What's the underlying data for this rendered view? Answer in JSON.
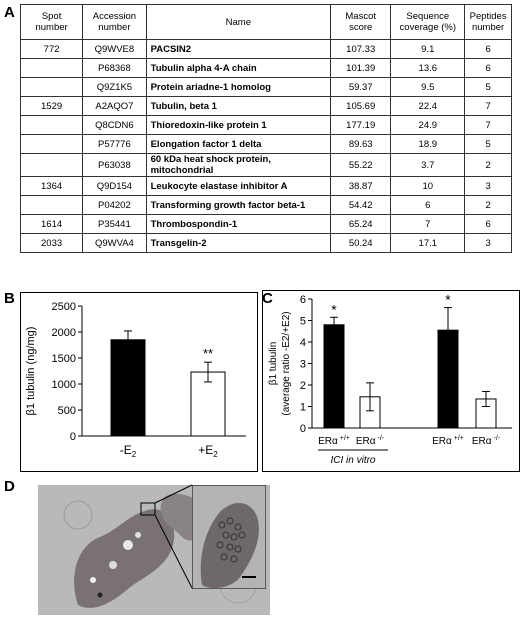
{
  "panels": {
    "A": "A",
    "B": "B",
    "C": "C",
    "D": "D"
  },
  "table": {
    "headers": [
      "Spot number",
      "Accession number",
      "Name",
      "Mascot score",
      "Sequence coverage (%)",
      "Peptides number"
    ],
    "rows": [
      [
        "772",
        "Q9WVE8",
        "PACSIN2",
        "107.33",
        "9.1",
        "6"
      ],
      [
        "",
        "P68368",
        "Tubulin alpha 4-A chain",
        "101.39",
        "13.6",
        "6"
      ],
      [
        "",
        "Q9Z1K5",
        "Protein ariadne-1 homolog",
        "59.37",
        "9.5",
        "5"
      ],
      [
        "1529",
        "A2AQO7",
        "Tubulin, beta 1",
        "105.69",
        "22.4",
        "7"
      ],
      [
        "",
        "Q8CDN6",
        "Thioredoxin-like protein 1",
        "177.19",
        "24.9",
        "7"
      ],
      [
        "",
        "P57776",
        "Elongation factor 1 delta",
        "89.63",
        "18.9",
        "5"
      ],
      [
        "",
        "P63038",
        "60 kDa heat shock protein, mitochondrial",
        "55.22",
        "3.7",
        "2"
      ],
      [
        "1364",
        "Q9D154",
        "Leukocyte elastase inhibitor A",
        "38.87",
        "10",
        "3"
      ],
      [
        "",
        "P04202",
        "Transforming growth factor beta-1",
        "54.42",
        "6",
        "2"
      ],
      [
        "1614",
        "P35441",
        "Thrombospondin-1",
        "65.24",
        "7",
        "6"
      ],
      [
        "2033",
        "Q9WVA4",
        "Transgelin-2",
        "50.24",
        "17.1",
        "3"
      ]
    ]
  },
  "chart_data": [
    {
      "type": "bar",
      "categories": [
        "-E2",
        "+E2"
      ],
      "values": [
        1850,
        1230
      ],
      "errors": [
        170,
        190
      ],
      "ylabel": "β1 tubulin (ng/mg)",
      "ylim": [
        0,
        2500
      ],
      "yticks": [
        "0",
        "500",
        "1000",
        "1500",
        "2000",
        "2500"
      ],
      "fills": [
        "#000000",
        "#ffffff"
      ],
      "annotations": [
        "",
        "**"
      ]
    },
    {
      "type": "bar",
      "categories": [
        "ERα +/+",
        "ERα -/-",
        "ERα +/+",
        "ERα -/-"
      ],
      "values": [
        4.8,
        1.45,
        4.55,
        1.35
      ],
      "errors": [
        0.35,
        0.65,
        1.05,
        0.35
      ],
      "ylabel_line1": "β1 tubulin",
      "ylabel_line2": "(average ratio -E2/+E2)",
      "ylim": [
        0,
        6
      ],
      "yticks": [
        "0",
        "1",
        "2",
        "3",
        "4",
        "5",
        "6"
      ],
      "fills": [
        "#000000",
        "#ffffff",
        "#000000",
        "#ffffff"
      ],
      "annotations": [
        "*",
        "",
        "*",
        ""
      ],
      "group_label": "ICI in vitro"
    }
  ],
  "colors": {
    "bar_dark": "#000000",
    "bar_light": "#ffffff",
    "micro_bg": "#b9b9b9",
    "cell": "#7a7272"
  }
}
